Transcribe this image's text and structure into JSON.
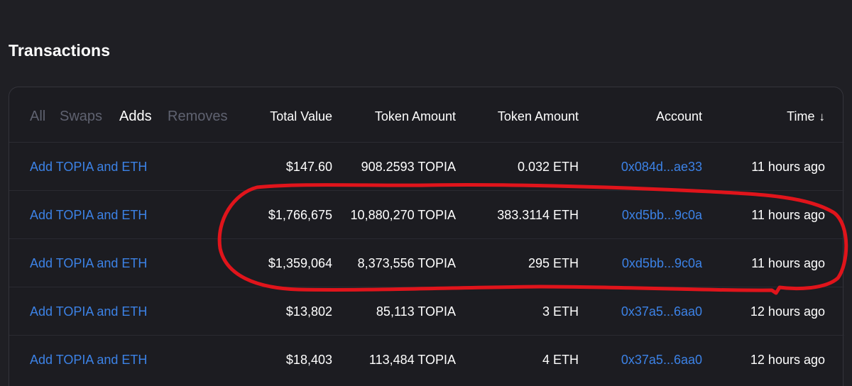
{
  "page": {
    "title": "Transactions"
  },
  "filters": [
    {
      "label": "All",
      "active": false
    },
    {
      "label": "Swaps",
      "active": false
    },
    {
      "label": "Adds",
      "active": true
    },
    {
      "label": "Removes",
      "active": false
    }
  ],
  "columns": {
    "total_value": "Total Value",
    "token_amount_1": "Token Amount",
    "token_amount_2": "Token Amount",
    "account": "Account",
    "time": "Time",
    "time_sort_icon": "arrow-down-icon",
    "time_sort_glyph": "↓"
  },
  "rows": [
    {
      "action": "Add TOPIA and ETH",
      "total": "$147.60",
      "token1": "908.2593 TOPIA",
      "token2": "0.032 ETH",
      "account": "0x084d...ae33",
      "time": "11 hours ago"
    },
    {
      "action": "Add TOPIA and ETH",
      "total": "$1,766,675",
      "token1": "10,880,270 TOPIA",
      "token2": "383.3114 ETH",
      "account": "0xd5bb...9c0a",
      "time": "11 hours ago"
    },
    {
      "action": "Add TOPIA and ETH",
      "total": "$1,359,064",
      "token1": "8,373,556 TOPIA",
      "token2": "295 ETH",
      "account": "0xd5bb...9c0a",
      "time": "11 hours ago"
    },
    {
      "action": "Add TOPIA and ETH",
      "total": "$13,802",
      "token1": "85,113 TOPIA",
      "token2": "3 ETH",
      "account": "0x37a5...6aa0",
      "time": "12 hours ago"
    },
    {
      "action": "Add TOPIA and ETH",
      "total": "$18,403",
      "token1": "113,484 TOPIA",
      "token2": "4 ETH",
      "account": "0x37a5...6aa0",
      "time": "12 hours ago"
    }
  ],
  "colors": {
    "background": "#1f1f24",
    "link": "#3c82e6",
    "inactive_filter": "#5f6270",
    "annotation": "#e0141b"
  }
}
